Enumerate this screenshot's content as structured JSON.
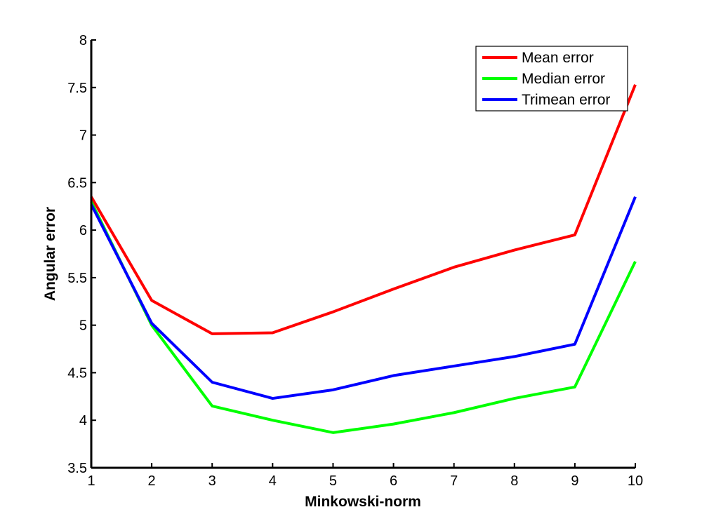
{
  "chart_data": {
    "type": "line",
    "title": "",
    "xlabel": "Minkowski-norm",
    "ylabel": "Angular error",
    "xlim": [
      1,
      10
    ],
    "ylim": [
      3.5,
      8
    ],
    "x": [
      1,
      2,
      3,
      4,
      5,
      6,
      7,
      8,
      9,
      10
    ],
    "x_ticks": [
      "1",
      "2",
      "3",
      "4",
      "5",
      "6",
      "7",
      "8",
      "9",
      "10"
    ],
    "y_ticks": [
      "3.5",
      "4",
      "4.5",
      "5",
      "5.5",
      "6",
      "6.5",
      "7",
      "7.5",
      "8"
    ],
    "grid": false,
    "legend_position": "top-right",
    "series": [
      {
        "name": "Mean error",
        "color": "#ff0000",
        "values": [
          6.35,
          5.26,
          4.91,
          4.92,
          5.14,
          5.38,
          5.61,
          5.79,
          5.95,
          7.53
        ]
      },
      {
        "name": "Median error",
        "color": "#00ff00",
        "values": [
          6.3,
          5.0,
          4.15,
          4.0,
          3.87,
          3.96,
          4.08,
          4.23,
          4.35,
          5.67
        ]
      },
      {
        "name": "Trimean error",
        "color": "#0000ff",
        "values": [
          6.27,
          5.02,
          4.4,
          4.23,
          4.32,
          4.47,
          4.57,
          4.67,
          4.8,
          6.35
        ]
      }
    ]
  }
}
